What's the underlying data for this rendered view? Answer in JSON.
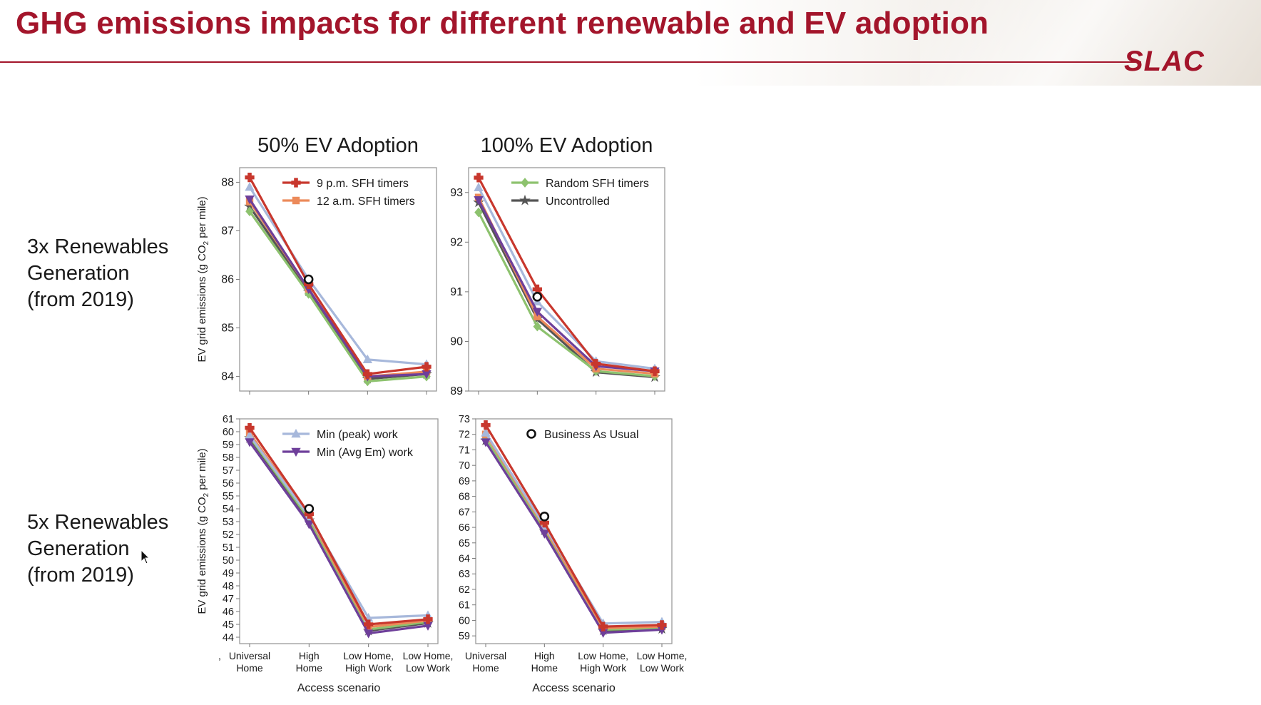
{
  "slide": {
    "title": "GHG emissions impacts for different renewable and EV adoption",
    "logo": "SLAC",
    "row_labels": [
      "3x Renewables\nGeneration\n(from 2019)",
      "5x Renewables\nGeneration\n(from 2019)"
    ],
    "col_titles": [
      "50% EV Adoption",
      "100% EV Adoption"
    ],
    "colors": {
      "brand": "#a3152b"
    }
  },
  "chart_data": [
    {
      "type": "line",
      "title": "50% EV Adoption",
      "ylabel": "EV grid emissions (g CO2 per mile)",
      "xlabel": "",
      "categories": [
        "Universal Home",
        "High Home",
        "Low Home, High Work",
        "Low Home, Low Work"
      ],
      "ylim": [
        83.7,
        88.3
      ],
      "yticks": [
        84,
        85,
        86,
        87,
        88
      ],
      "series": [
        {
          "name": "9 p.m. SFH timers",
          "color": "#c8372d",
          "marker": "plus",
          "values": [
            88.1,
            85.9,
            84.05,
            84.2
          ]
        },
        {
          "name": "12 a.m. SFH timers",
          "color": "#ec8a5a",
          "marker": "square",
          "values": [
            87.6,
            85.8,
            84.0,
            84.1
          ]
        },
        {
          "name": "Random SFH timers",
          "color": "#8dc26e",
          "marker": "diamond",
          "values": [
            87.4,
            85.7,
            83.9,
            84.0
          ]
        },
        {
          "name": "Uncontrolled",
          "color": "#555555",
          "marker": "star",
          "values": [
            87.5,
            85.75,
            83.95,
            84.05
          ]
        },
        {
          "name": "Min (peak) work",
          "color": "#a7b8db",
          "marker": "triangle-up",
          "values": [
            87.9,
            86.0,
            84.35,
            84.25
          ]
        },
        {
          "name": "Min (Avg Em) work",
          "color": "#6e3f9a",
          "marker": "triangle-down",
          "values": [
            87.65,
            85.8,
            84.0,
            84.05
          ]
        }
      ],
      "highlight": {
        "name": "Business As Usual",
        "category": "High Home",
        "value": 86.0
      },
      "legend": {
        "position": "top-right",
        "entries": [
          0,
          1
        ]
      }
    },
    {
      "type": "line",
      "title": "100% EV Adoption",
      "ylabel": "",
      "xlabel": "",
      "categories": [
        "Universal Home",
        "High Home",
        "Low Home, High Work",
        "Low Home, Low Work"
      ],
      "ylim": [
        89.0,
        93.5
      ],
      "yticks": [
        89,
        90,
        91,
        92,
        93
      ],
      "series": [
        {
          "name": "9 p.m. SFH timers",
          "color": "#c8372d",
          "marker": "plus",
          "values": [
            93.3,
            91.05,
            89.55,
            89.4
          ]
        },
        {
          "name": "12 a.m. SFH timers",
          "color": "#ec8a5a",
          "marker": "square",
          "values": [
            92.9,
            90.5,
            89.45,
            89.35
          ]
        },
        {
          "name": "Random SFH timers",
          "color": "#8dc26e",
          "marker": "diamond",
          "values": [
            92.6,
            90.3,
            89.4,
            89.3
          ]
        },
        {
          "name": "Uncontrolled",
          "color": "#555555",
          "marker": "star",
          "values": [
            92.8,
            90.45,
            89.38,
            89.28
          ]
        },
        {
          "name": "Min (peak) work",
          "color": "#a7b8db",
          "marker": "triangle-up",
          "values": [
            93.1,
            90.8,
            89.6,
            89.45
          ]
        },
        {
          "name": "Min (Avg Em) work",
          "color": "#6e3f9a",
          "marker": "triangle-down",
          "values": [
            92.85,
            90.6,
            89.5,
            89.4
          ]
        }
      ],
      "highlight": {
        "name": "Business As Usual",
        "category": "High Home",
        "value": 90.9
      },
      "legend": {
        "position": "top-right",
        "entries": [
          2,
          3
        ]
      }
    },
    {
      "type": "line",
      "title": "",
      "ylabel": "EV grid emissions (g CO2 per mile)",
      "xlabel": "Access scenario",
      "categories": [
        "Universal Home",
        "High Home",
        "Low Home, High Work",
        "Low Home, Low Work"
      ],
      "ylim": [
        43.5,
        61.0
      ],
      "yticks": [
        44,
        45,
        46,
        47,
        48,
        49,
        50,
        51,
        52,
        53,
        54,
        55,
        56,
        57,
        58,
        59,
        60,
        61
      ],
      "series": [
        {
          "name": "9 p.m. SFH timers",
          "color": "#c8372d",
          "marker": "plus",
          "values": [
            60.3,
            53.6,
            45.0,
            45.4
          ]
        },
        {
          "name": "12 a.m. SFH timers",
          "color": "#ec8a5a",
          "marker": "square",
          "values": [
            59.9,
            53.4,
            44.8,
            45.3
          ]
        },
        {
          "name": "Random SFH timers",
          "color": "#8dc26e",
          "marker": "diamond",
          "values": [
            59.6,
            53.2,
            44.6,
            45.2
          ]
        },
        {
          "name": "Uncontrolled",
          "color": "#555555",
          "marker": "star",
          "values": [
            59.5,
            53.1,
            44.5,
            45.1
          ]
        },
        {
          "name": "Min (peak) work",
          "color": "#a7b8db",
          "marker": "triangle-up",
          "values": [
            59.7,
            53.4,
            45.5,
            45.7
          ]
        },
        {
          "name": "Min (Avg Em) work",
          "color": "#6e3f9a",
          "marker": "triangle-down",
          "values": [
            59.2,
            52.8,
            44.3,
            44.9
          ]
        }
      ],
      "highlight": {
        "name": "Business As Usual",
        "category": "High Home",
        "value": 54.0
      },
      "legend": {
        "position": "top-right",
        "entries": [
          4,
          5
        ]
      }
    },
    {
      "type": "line",
      "title": "",
      "ylabel": "",
      "xlabel": "Access scenario",
      "categories": [
        "Universal Home",
        "High Home",
        "Low Home, High Work",
        "Low Home, Low Work"
      ],
      "ylim": [
        58.5,
        73.0
      ],
      "yticks": [
        59,
        60,
        61,
        62,
        63,
        64,
        65,
        66,
        67,
        68,
        69,
        70,
        71,
        72,
        73
      ],
      "series": [
        {
          "name": "9 p.m. SFH timers",
          "color": "#c8372d",
          "marker": "plus",
          "values": [
            72.6,
            66.3,
            59.6,
            59.7
          ]
        },
        {
          "name": "12 a.m. SFH timers",
          "color": "#ec8a5a",
          "marker": "square",
          "values": [
            72.0,
            66.0,
            59.5,
            59.6
          ]
        },
        {
          "name": "Random SFH timers",
          "color": "#8dc26e",
          "marker": "diamond",
          "values": [
            71.7,
            65.9,
            59.4,
            59.5
          ]
        },
        {
          "name": "Uncontrolled",
          "color": "#555555",
          "marker": "star",
          "values": [
            71.6,
            65.8,
            59.35,
            59.45
          ]
        },
        {
          "name": "Min (peak) work",
          "color": "#a7b8db",
          "marker": "triangle-up",
          "values": [
            72.1,
            66.1,
            59.8,
            59.9
          ]
        },
        {
          "name": "Min (Avg Em) work",
          "color": "#6e3f9a",
          "marker": "triangle-down",
          "values": [
            71.5,
            65.6,
            59.2,
            59.4
          ]
        }
      ],
      "highlight": {
        "name": "Business As Usual",
        "category": "High Home",
        "value": 66.7
      },
      "legend": {
        "position": "top-right",
        "entries": [
          "bau"
        ]
      }
    }
  ],
  "axis_category_labels": [
    [
      "Universal",
      "Home"
    ],
    [
      "High",
      "Home"
    ],
    [
      "Low Home,",
      "High Work"
    ],
    [
      "Low Home,",
      "Low Work"
    ]
  ],
  "ylabel_parts": {
    "pre": "EV grid emissions (g CO",
    "sub": "2",
    "post": " per mile)"
  },
  "tick_comma": ","
}
